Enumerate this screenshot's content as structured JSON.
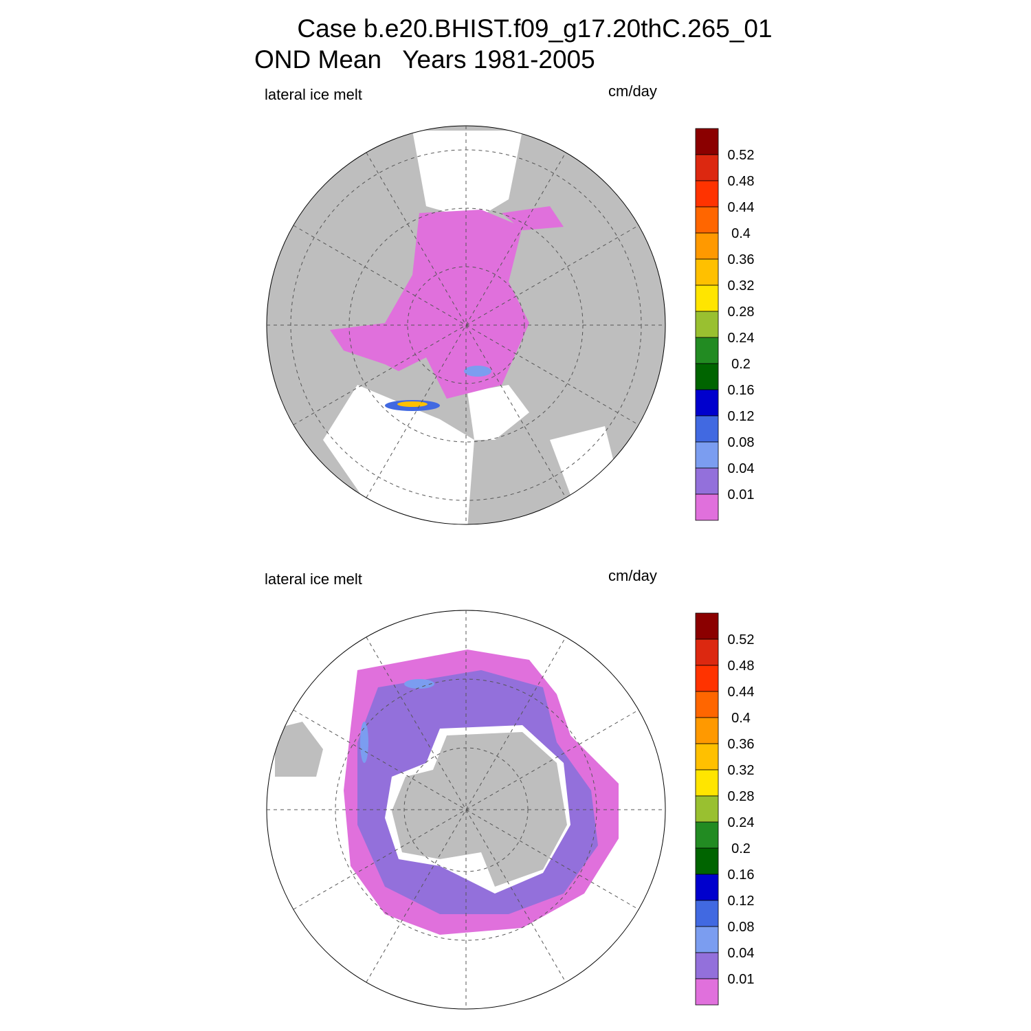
{
  "header": {
    "title": "Case b.e20.BHIST.f09_g17.20thC.265_01",
    "subtitle": "OND Mean   Years 1981-2005"
  },
  "panels": [
    {
      "label": "lateral ice melt",
      "units": "cm/day",
      "colorbar": {
        "colors": [
          "#8b0000",
          "#dc2810",
          "#ff3300",
          "#ff6600",
          "#ff9900",
          "#ffc000",
          "#ffe500",
          "#99c030",
          "#228b22",
          "#006400",
          "#0000cd",
          "#4169e1",
          "#7b9df0",
          "#9370db",
          "#e070dc"
        ],
        "levels": [
          0.52,
          0.48,
          0.44,
          0.4,
          0.36,
          0.32,
          0.28,
          0.24,
          0.2,
          0.16,
          0.12,
          0.08,
          0.04,
          0.01
        ]
      }
    },
    {
      "label": "lateral ice melt",
      "units": "cm/day",
      "colorbar": {
        "colors": [
          "#8b0000",
          "#dc2810",
          "#ff3300",
          "#ff6600",
          "#ff9900",
          "#ffc000",
          "#ffe500",
          "#99c030",
          "#228b22",
          "#006400",
          "#0000cd",
          "#4169e1",
          "#7b9df0",
          "#9370db",
          "#e070dc"
        ],
        "levels": [
          0.52,
          0.48,
          0.44,
          0.4,
          0.36,
          0.32,
          0.28,
          0.24,
          0.2,
          0.16,
          0.12,
          0.08,
          0.04,
          0.01
        ]
      }
    }
  ]
}
